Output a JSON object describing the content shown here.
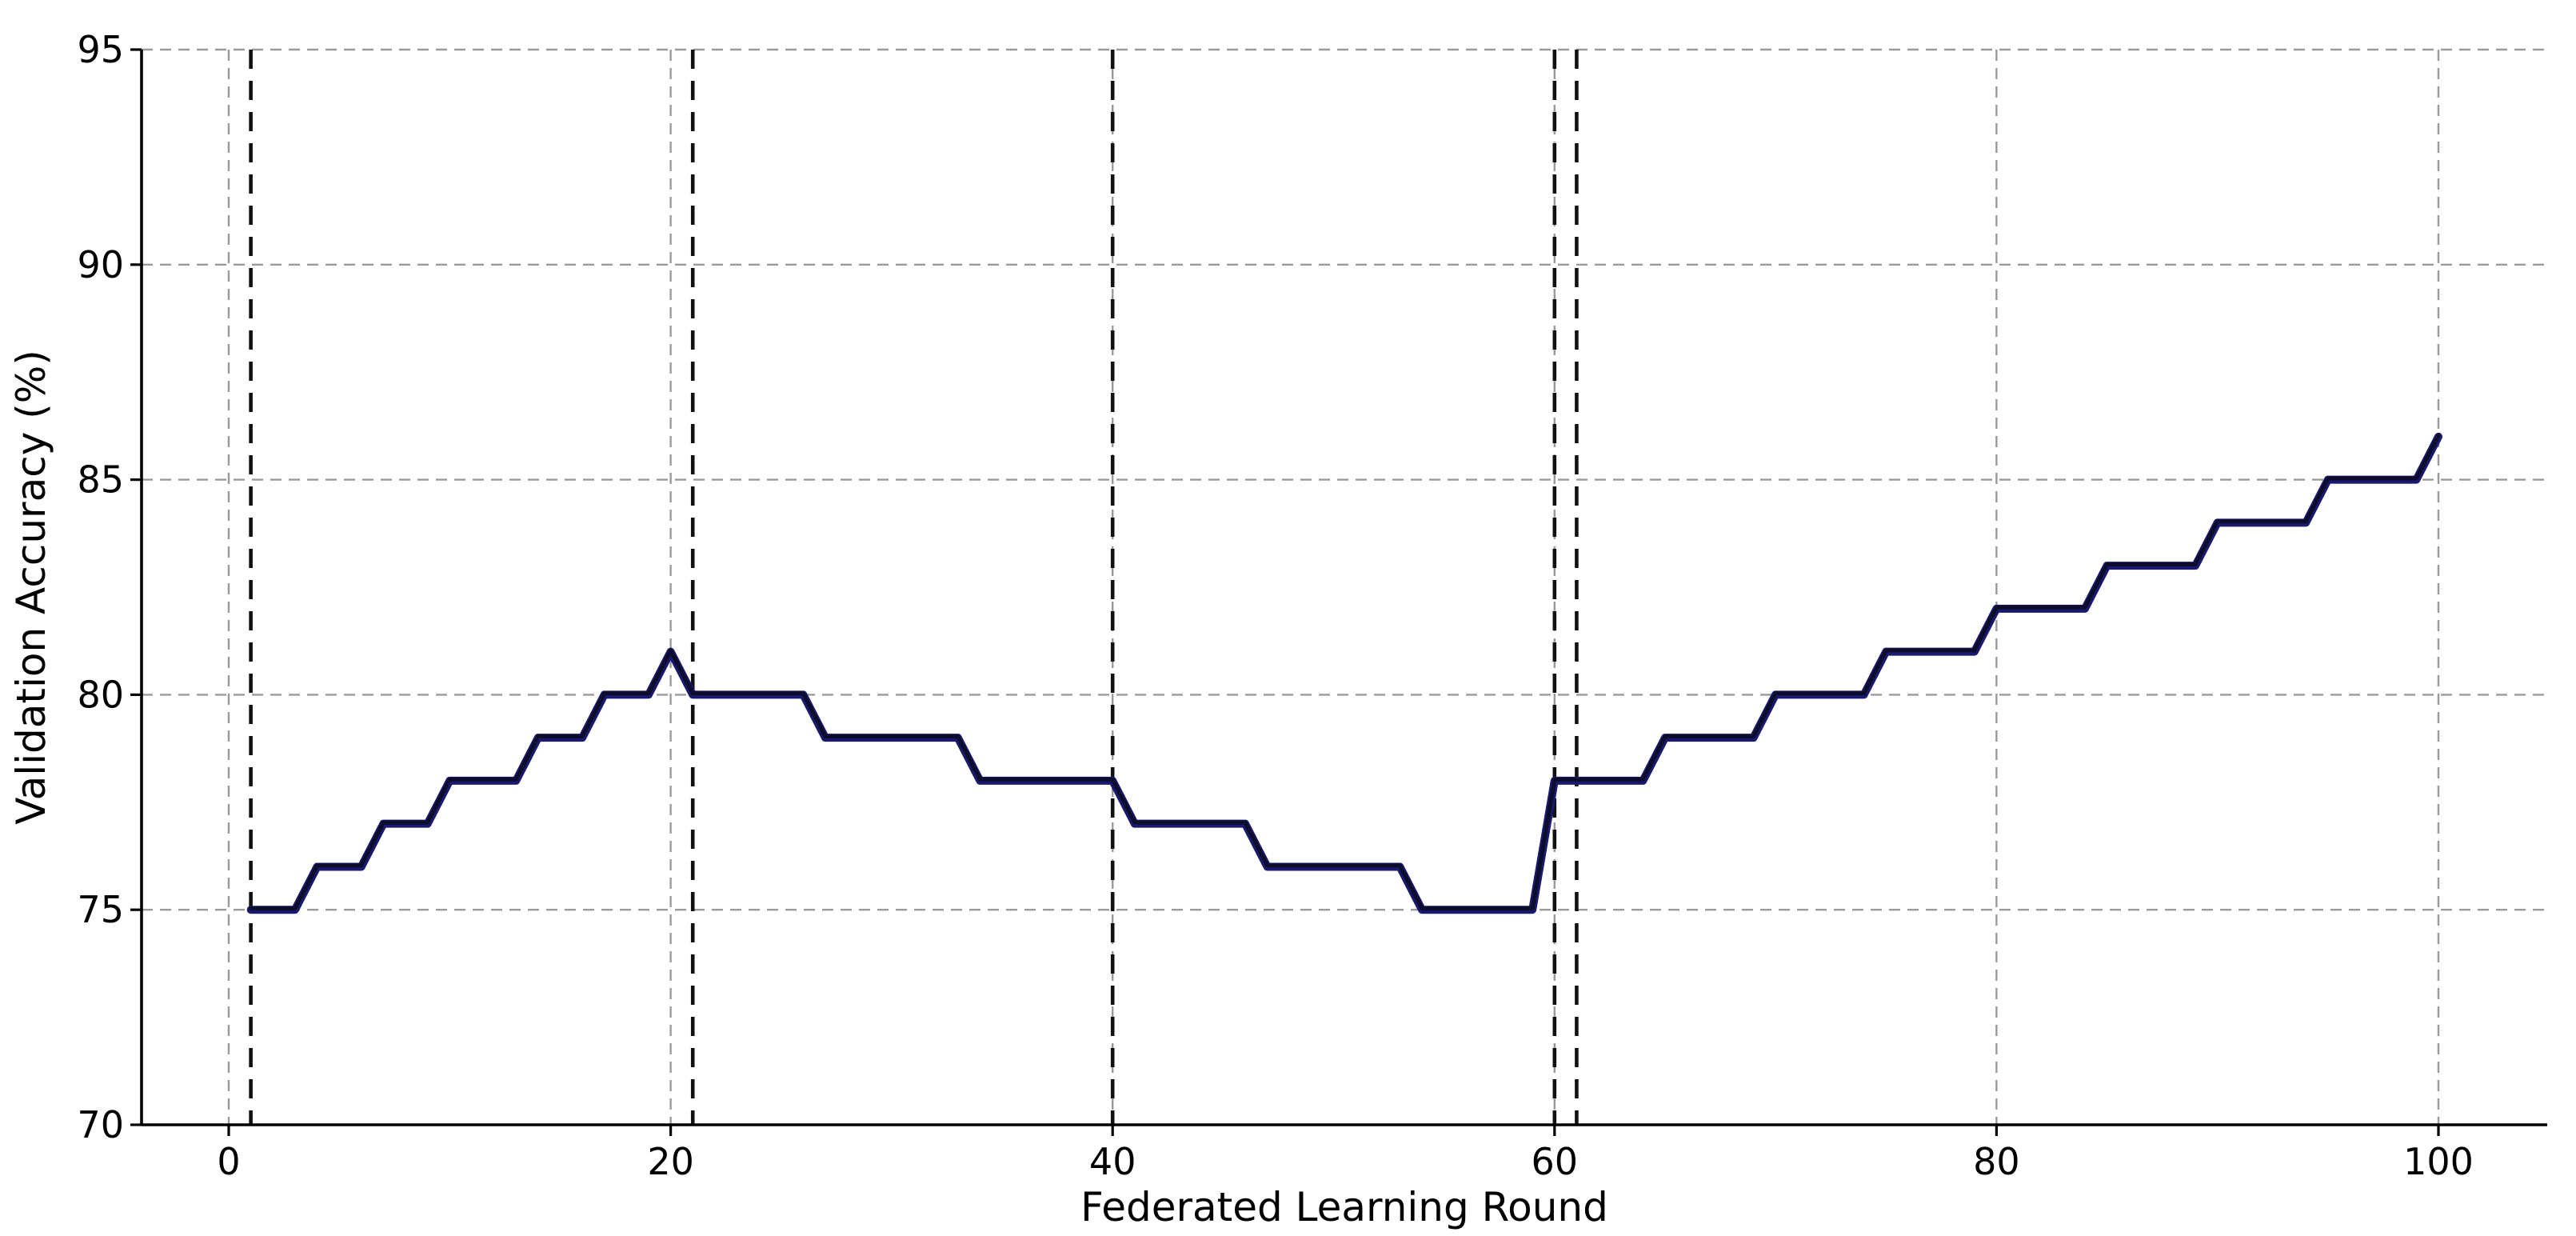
{
  "chart_data": {
    "type": "line",
    "title": "",
    "xlabel": "Federated Learning Round",
    "ylabel": "Validation Accuracy (%)",
    "xlim": [
      -4,
      104.9
    ],
    "ylim": [
      70,
      95
    ],
    "x_ticks": [
      0,
      20,
      40,
      60,
      80,
      100
    ],
    "y_ticks": [
      70,
      75,
      80,
      85,
      90,
      95
    ],
    "grid": true,
    "grid_color": "#9a9a9a",
    "legend": "none",
    "event_vlines": {
      "x": [
        1,
        21,
        40,
        60,
        61
      ],
      "color": "#111111",
      "style": "dashed"
    },
    "series": [
      {
        "name": "validation-accuracy",
        "color": "#191970",
        "core_color": "#0d0d2b",
        "x_start": 1,
        "x_step": 1,
        "values": [
          75,
          75,
          75,
          76,
          76,
          76,
          77,
          77,
          77,
          78,
          78,
          78,
          78,
          79,
          79,
          79,
          80,
          80,
          80,
          81,
          80,
          80,
          80,
          80,
          80,
          80,
          79,
          79,
          79,
          79,
          79,
          79,
          79,
          78,
          78,
          78,
          78,
          78,
          78,
          78,
          77,
          77,
          77,
          77,
          77,
          77,
          76,
          76,
          76,
          76,
          76,
          76,
          76,
          75,
          75,
          75,
          75,
          75,
          75,
          78,
          78,
          78,
          78,
          78,
          79,
          79,
          79,
          79,
          79,
          80,
          80,
          80,
          80,
          80,
          81,
          81,
          81,
          81,
          81,
          82,
          82,
          82,
          82,
          82,
          83,
          83,
          83,
          83,
          83,
          84,
          84,
          84,
          84,
          84,
          85,
          85,
          85,
          85,
          85,
          86
        ]
      }
    ]
  },
  "colors": {
    "background": "#ffffff",
    "spine": "#000000",
    "tick_label": "#000000"
  }
}
